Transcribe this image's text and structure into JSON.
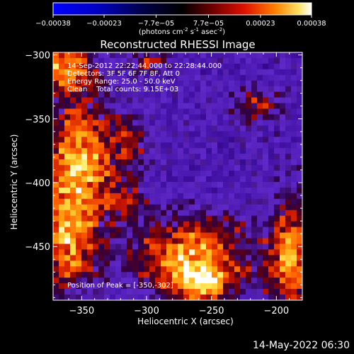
{
  "chart_data": {
    "type": "heatmap",
    "title": "Reconstructed RHESSI Image",
    "xlabel": "Heliocentric X (arcsec)",
    "ylabel": "Heliocentric Y (arcsec)",
    "xlim": [
      -372,
      -180
    ],
    "ylim": [
      -492,
      -298
    ],
    "x_ticks": [
      "-350",
      "-300",
      "-250",
      "-200"
    ],
    "y_ticks": [
      "-300",
      "-350",
      "-400",
      "-450"
    ],
    "colorbar": {
      "range": [
        -0.00038,
        0.00038
      ],
      "tick_labels": [
        "-0.00038",
        "-0.00023",
        "-7.7e-05",
        "7.7e-05",
        "0.00023",
        "0.00038"
      ],
      "unit_label": "(photons cm",
      "unit_exp1": "-2",
      "unit_mid": " s",
      "unit_exp2": "-1",
      "unit_tail": " asec",
      "unit_exp3": "-2",
      "unit_close": ")"
    },
    "annotations": [
      "14-Sep-2012 22:22:44.000 to 22:28:44.000",
      "Detectors: 3F 5F 6F 7F 8F, Att 0",
      "Energy Range: 25.0 - 50.0 keV",
      "Clean    Total counts: 9.15E+03"
    ],
    "peak_label": "Position of Peak = [-350,-302]",
    "grid": false
  },
  "footer": {
    "timestamp": "14-May-2022 06:30"
  }
}
